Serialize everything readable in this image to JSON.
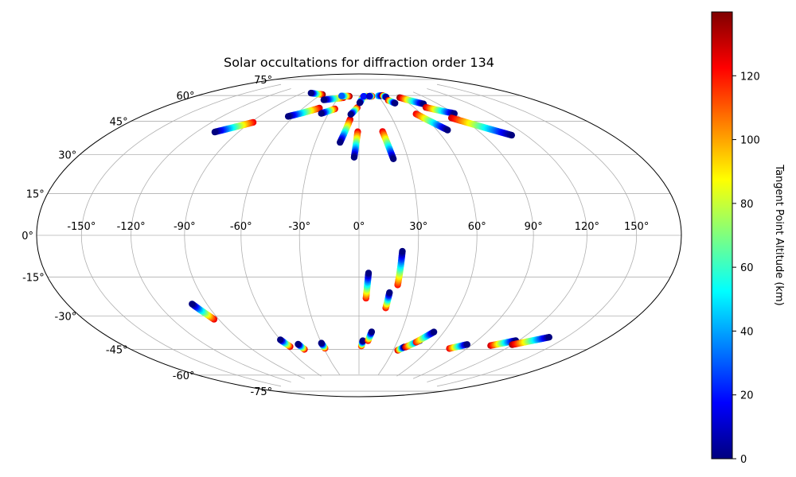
{
  "chart_data": {
    "type": "scatter",
    "projection": "hammer",
    "title": "Solar occultations for diffraction order 134",
    "lon_ticks": [
      -150,
      -120,
      -90,
      -60,
      -30,
      0,
      30,
      60,
      90,
      120,
      150
    ],
    "lon_tick_labels": [
      "-150°",
      "-120°",
      "-90°",
      "-60°",
      "-30°",
      "0°",
      "30°",
      "60°",
      "90°",
      "120°",
      "150°"
    ],
    "lat_ticks": [
      75,
      60,
      45,
      30,
      15,
      0,
      -15,
      -30,
      -45,
      -60,
      -75
    ],
    "lat_tick_labels": [
      "75°",
      "60°",
      "45°",
      "30°",
      "15°",
      "0°",
      "-15°",
      "-30°",
      "-45°",
      "-60°",
      "-75°"
    ],
    "grid": true,
    "colorbar": {
      "label": "Tangent Point Altitude (km)",
      "colormap": "jet",
      "range": [
        0,
        140
      ],
      "ticks": [
        0,
        20,
        40,
        60,
        80,
        100,
        120
      ],
      "tick_labels": [
        "0",
        "20",
        "40",
        "60",
        "80",
        "100",
        "120"
      ]
    },
    "tracks": [
      {
        "lon_start": -88,
        "lat_start": 56,
        "lon_end": -107,
        "lat_end": 49,
        "alt_start": 125,
        "alt_end": 0
      },
      {
        "lon_start": -58,
        "lat_start": 75,
        "lon_end": -78,
        "lat_end": 75,
        "alt_start": 138,
        "alt_end": 0
      },
      {
        "lon_start": -43,
        "lat_start": 67,
        "lon_end": -65,
        "lat_end": 61,
        "alt_start": 130,
        "alt_end": 0
      },
      {
        "lon_start": -23,
        "lat_start": 74,
        "lon_end": -47,
        "lat_end": 72,
        "alt_start": 130,
        "alt_end": 0
      },
      {
        "lon_start": -26,
        "lat_start": 67,
        "lon_end": -37,
        "lat_end": 64,
        "alt_start": 125,
        "alt_end": 0
      },
      {
        "lon_start": -15,
        "lat_start": 75,
        "lon_end": -27,
        "lat_end": 75,
        "alt_start": 138,
        "alt_end": 30
      },
      {
        "lon_start": -8,
        "lat_start": 61,
        "lon_end": -13,
        "lat_end": 48,
        "alt_start": 130,
        "alt_end": 0
      },
      {
        "lon_start": -2,
        "lat_start": 68,
        "lon_end": -8,
        "lat_end": 64,
        "alt_start": 128,
        "alt_end": 0
      },
      {
        "lon_start": -1,
        "lat_start": 54,
        "lon_end": -3,
        "lat_end": 40,
        "alt_start": 125,
        "alt_end": 0
      },
      {
        "lon_start": 5,
        "lat_start": 74,
        "lon_end": 1,
        "lat_end": 71,
        "alt_start": 128,
        "alt_end": 0
      },
      {
        "lon_start": 12,
        "lat_start": 75,
        "lon_end": 7,
        "lat_end": 75,
        "alt_start": 128,
        "alt_end": 20
      },
      {
        "lon_start": 18,
        "lat_start": 54,
        "lon_end": 21,
        "lat_end": 39,
        "alt_start": 125,
        "alt_end": 0
      },
      {
        "lon_start": 20,
        "lat_start": 75,
        "lon_end": 16,
        "lat_end": 75,
        "alt_start": 138,
        "alt_end": 10
      },
      {
        "lon_start": 30,
        "lat_start": 75,
        "lon_end": 37,
        "lat_end": 75,
        "alt_start": 50,
        "alt_end": 0
      },
      {
        "lon_start": 37,
        "lat_start": 75,
        "lon_end": 40,
        "lat_end": 74,
        "alt_start": 138,
        "alt_end": 5
      },
      {
        "lon_start": 39,
        "lat_start": 72,
        "lon_end": 44,
        "lat_end": 70,
        "alt_start": 130,
        "alt_end": 0
      },
      {
        "lon_start": 55,
        "lat_start": 63,
        "lon_end": 68,
        "lat_end": 53,
        "alt_start": 125,
        "alt_end": 0
      },
      {
        "lon_start": 58,
        "lat_start": 73,
        "lon_end": 75,
        "lat_end": 68,
        "alt_start": 138,
        "alt_end": 0
      },
      {
        "lon_start": 72,
        "lat_start": 66,
        "lon_end": 90,
        "lat_end": 61,
        "alt_start": 130,
        "alt_end": 0
      },
      {
        "lon_start": 82,
        "lat_start": 59,
        "lon_end": 110,
        "lat_end": 47,
        "alt_start": 130,
        "alt_end": 0
      },
      {
        "lon_start": 21,
        "lat_start": -25,
        "lon_end": 22,
        "lat_end": -8,
        "alt_start": 120,
        "alt_end": 0
      },
      {
        "lon_start": 4,
        "lat_start": -32,
        "lon_end": 5,
        "lat_end": -19,
        "alt_start": 120,
        "alt_end": 0
      },
      {
        "lon_start": 16,
        "lat_start": -37,
        "lon_end": 17,
        "lat_end": -29,
        "alt_start": 120,
        "alt_end": 0
      },
      {
        "lon_start": -93,
        "lat_start": -40,
        "lon_end": -99,
        "lat_end": -32,
        "alt_start": 125,
        "alt_end": 0
      },
      {
        "lon_start": -57,
        "lat_start": -57,
        "lon_end": -60,
        "lat_end": -53,
        "alt_start": 125,
        "alt_end": 0
      },
      {
        "lon_start": -47,
        "lat_start": -59,
        "lon_end": -49,
        "lat_end": -56,
        "alt_start": 125,
        "alt_end": 0
      },
      {
        "lon_start": -29,
        "lat_start": -59,
        "lon_end": -30,
        "lat_end": -56,
        "alt_start": 120,
        "alt_end": 0
      },
      {
        "lon_start": 2,
        "lat_start": -58,
        "lon_end": 3,
        "lat_end": -55,
        "alt_start": 120,
        "alt_end": 0
      },
      {
        "lon_start": 7,
        "lat_start": -55,
        "lon_end": 9,
        "lat_end": -50,
        "alt_start": 120,
        "alt_end": 0
      },
      {
        "lon_start": 34,
        "lat_start": -60,
        "lon_end": 38,
        "lat_end": -58,
        "alt_start": 130,
        "alt_end": 0
      },
      {
        "lon_start": 39,
        "lat_start": -58,
        "lon_end": 47,
        "lat_end": -54,
        "alt_start": 130,
        "alt_end": 0
      },
      {
        "lon_start": 45,
        "lat_start": -55,
        "lon_end": 53,
        "lat_end": -49,
        "alt_start": 120,
        "alt_end": 0
      },
      {
        "lon_start": 76,
        "lat_start": -57,
        "lon_end": 86,
        "lat_end": -54,
        "alt_start": 125,
        "alt_end": 0
      },
      {
        "lon_start": 105,
        "lat_start": -53,
        "lon_end": 118,
        "lat_end": -49,
        "alt_start": 130,
        "alt_end": 0
      },
      {
        "lon_start": 120,
        "lat_start": -51,
        "lon_end": 138,
        "lat_end": -45,
        "alt_start": 135,
        "alt_end": 0
      }
    ]
  }
}
